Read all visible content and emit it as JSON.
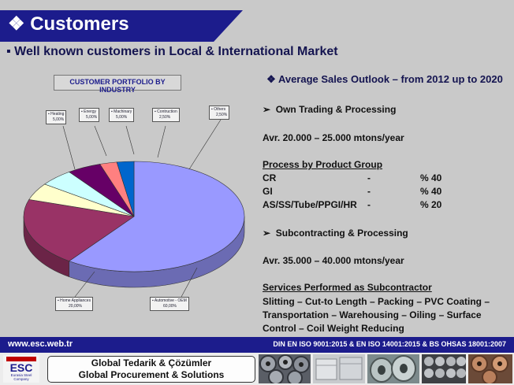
{
  "header": {
    "title": "Customers",
    "bullet_icon": "diamond-bullet-icon"
  },
  "subheading": "Well known customers in Local & International Market",
  "chart_data": {
    "type": "pie",
    "title": "CUSTOMER PORTFOLIO BY INDUSTRY",
    "slices": [
      {
        "label": "Automotive - OEM",
        "pct_text": "60,00%",
        "value": 60,
        "color": "#9999ff"
      },
      {
        "label": "Home Appliances",
        "pct_text": "20,00%",
        "value": 20,
        "color": "#993366"
      },
      {
        "label": "Heating",
        "pct_text": "5,00%",
        "value": 5,
        "color": "#ffffcc"
      },
      {
        "label": "Energy",
        "pct_text": "5,00%",
        "value": 5,
        "color": "#ccffff"
      },
      {
        "label": "Machinary",
        "pct_text": "5,00%",
        "value": 5,
        "color": "#660066"
      },
      {
        "label": "Contruction",
        "pct_text": "2,50%",
        "value": 2.5,
        "color": "#ff8080"
      },
      {
        "label": "Others",
        "pct_text": "2,50%",
        "value": 2.5,
        "color": "#0066cc"
      }
    ]
  },
  "right": {
    "title": "Average Sales Outlook –  from 2012  up to 2020",
    "title_icon": "diamond-bullet-icon",
    "own_trading": "Own Trading & Processing",
    "own_volume": "Avr. 20.000 – 25.000 mtons/year",
    "product_group_heading": "Process by Product Group",
    "product_groups": [
      {
        "name": "CR",
        "dash": "-",
        "share": "% 40"
      },
      {
        "name": "GI",
        "dash": "-",
        "share": "% 40"
      },
      {
        "name": "AS/SS/Tube/PPGI/HR",
        "dash": "-",
        "share": "% 20"
      }
    ],
    "subcontracting": "Subcontracting & Processing",
    "sub_volume": "Avr. 35.000 – 40.000 mtons/year",
    "services_heading": "Services Performed as Subcontractor",
    "services_lines": [
      "Slitting – Cut-to Length – Packing – PVC Coating –",
      "Transportation – Warehousing – Oiling – Surface",
      "Control – Coil Weight Reducing"
    ]
  },
  "footer": {
    "url": "www.esc.web.tr",
    "iso": "DIN EN ISO 9001:2015 & EN ISO 14001:2015 & BS OHSAS 18001:2007",
    "logo_letters": "ESC",
    "logo_sub1": "Eurasia Steel",
    "logo_sub2": "Company",
    "slogan_tr": "Global Tedarik &  Çözümler",
    "slogan_en": "Global Procurement & Solutions"
  }
}
